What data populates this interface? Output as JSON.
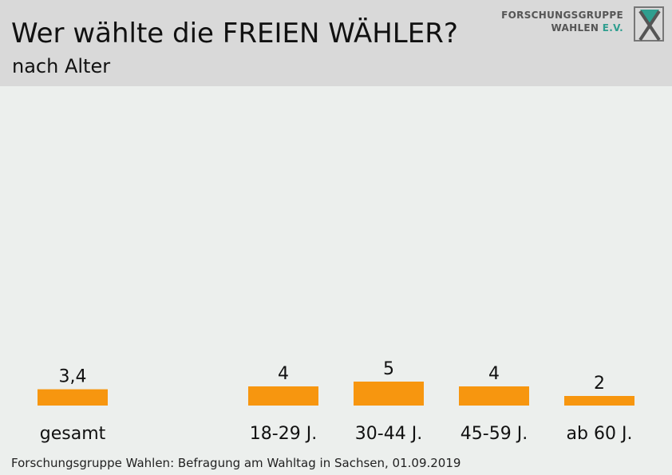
{
  "header": {
    "title": "Wer wählte die FREIEN WÄHLER?",
    "subtitle": "nach Alter"
  },
  "logo": {
    "line1": "FORSCHUNGSGRUPPE",
    "line2_main": "WAHLEN",
    "line2_ev": "E.V."
  },
  "footer": {
    "source": "Forschungsgruppe Wahlen: Befragung am Wahltag in Sachsen, 01.09.2019"
  },
  "colors": {
    "bar": "#f7960f",
    "header_bg": "#d9d9d9",
    "background": "#ecefed",
    "logo_accent": "#2f9e8f"
  },
  "chart_data": {
    "type": "bar",
    "title": "Wer wählte die FREIEN WÄHLER?",
    "subtitle": "nach Alter",
    "categories": [
      "gesamt",
      "18-29 J.",
      "30-44 J.",
      "45-59 J.",
      "ab 60 J."
    ],
    "values": [
      3.4,
      4,
      5,
      4,
      2
    ],
    "value_labels": [
      "3,4",
      "4",
      "5",
      "4",
      "2"
    ],
    "xlabel": "",
    "ylabel": "",
    "grid": false,
    "legend": "none"
  }
}
